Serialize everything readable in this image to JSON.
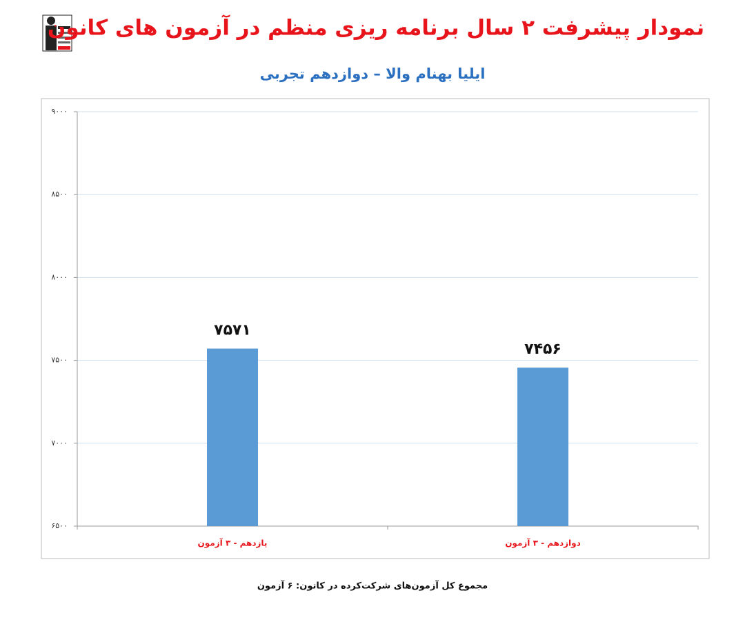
{
  "chart_data": {
    "type": "bar",
    "title": "نمودار پیشرفت ۲ سال برنامه ریزی منظم در آزمون های کانون",
    "subtitle": "ایلیا بهنام والا – دوازدهم تجربی",
    "categories": [
      "یازدهم - ۳ آزمون",
      "دوازدهم - ۳ آزمون"
    ],
    "values": [
      7571,
      7456
    ],
    "value_labels": [
      "۷۵۷۱",
      "۷۴۵۶"
    ],
    "color": "#5b9bd5",
    "ylim": [
      6500,
      9000
    ],
    "yticks": [
      {
        "value": 6500,
        "label": "۶۵۰۰"
      },
      {
        "value": 7000,
        "label": "۷۰۰۰"
      },
      {
        "value": 7500,
        "label": "۷۵۰۰"
      },
      {
        "value": 8000,
        "label": "۸۰۰۰"
      },
      {
        "value": 8500,
        "label": "۸۵۰۰"
      },
      {
        "value": 9000,
        "label": "۹۰۰۰"
      }
    ],
    "grid": true,
    "footnote": "مجموع کل آزمون‌های شرکت‌کرده در کانون: ۶ آزمون"
  }
}
